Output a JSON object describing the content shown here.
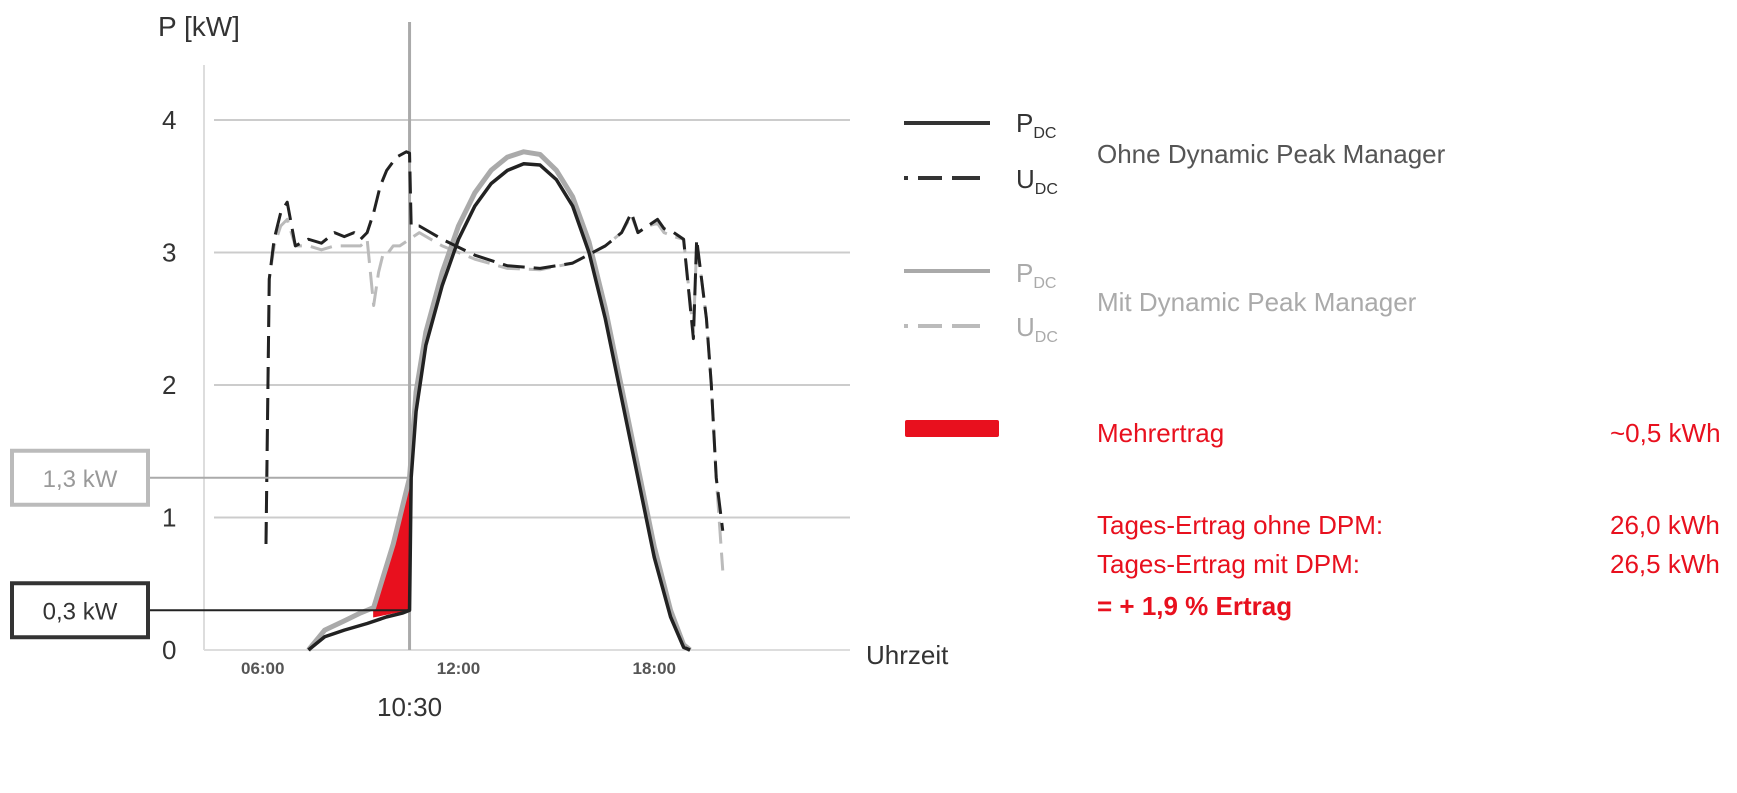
{
  "chart_data": {
    "type": "line",
    "ylabel": "P [kW]",
    "xlabel": "Uhrzeit",
    "ylim": [
      0,
      4.4
    ],
    "xlim": [
      4.2,
      24.0
    ],
    "y_ticks": [
      "0",
      "1",
      "2",
      "3",
      "4"
    ],
    "x_ticks": [
      {
        "label": "06:00",
        "value": 6.0
      },
      {
        "label": "12:00",
        "value": 12.0
      },
      {
        "label": "18:00",
        "value": 18.0
      }
    ],
    "marker": {
      "label": "10:30",
      "value": 10.5
    },
    "grid": true,
    "callouts": [
      {
        "label": "1,3 kW",
        "value": 1.3,
        "style": "grey"
      },
      {
        "label": "0,3 kW",
        "value": 0.3,
        "style": "dark"
      }
    ],
    "series": [
      {
        "legend": "P",
        "subscript": "DC",
        "group": "ohne",
        "style": "solid",
        "color": "#222222",
        "x": [
          7.4,
          7.9,
          8.5,
          9.2,
          9.8,
          10.3,
          10.5,
          10.55,
          10.7,
          11.0,
          11.5,
          12.0,
          12.5,
          13.0,
          13.5,
          14.0,
          14.5,
          15.0,
          15.5,
          16.0,
          16.5,
          17.0,
          17.5,
          18.0,
          18.5,
          18.9,
          19.1
        ],
        "y": [
          0.0,
          0.1,
          0.15,
          0.2,
          0.25,
          0.28,
          0.3,
          1.3,
          1.8,
          2.3,
          2.75,
          3.1,
          3.35,
          3.52,
          3.62,
          3.67,
          3.66,
          3.55,
          3.35,
          3.0,
          2.5,
          1.9,
          1.3,
          0.7,
          0.25,
          0.02,
          0.0
        ]
      },
      {
        "legend": "U",
        "subscript": "DC",
        "group": "ohne",
        "style": "dashed",
        "color": "#222222",
        "x": [
          6.1,
          6.2,
          6.35,
          6.55,
          6.75,
          7.0,
          7.4,
          7.8,
          8.2,
          8.5,
          8.8,
          9.0,
          9.2,
          9.4,
          9.6,
          9.8,
          10.1,
          10.4,
          10.5,
          10.55,
          10.8,
          11.5,
          12.5,
          13.5,
          14.5,
          15.5,
          16.5,
          17.0,
          17.3,
          17.5,
          17.8,
          18.1,
          18.3,
          18.6,
          18.9,
          19.2,
          19.3,
          19.45,
          19.6,
          19.75,
          19.9,
          20.1
        ],
        "y": [
          0.8,
          2.8,
          3.1,
          3.3,
          3.38,
          3.05,
          3.1,
          3.07,
          3.15,
          3.12,
          3.15,
          3.1,
          3.15,
          3.3,
          3.5,
          3.62,
          3.72,
          3.76,
          3.75,
          3.2,
          3.2,
          3.1,
          2.98,
          2.9,
          2.88,
          2.92,
          3.05,
          3.15,
          3.3,
          3.15,
          3.2,
          3.25,
          3.18,
          3.15,
          3.1,
          2.35,
          3.1,
          2.8,
          2.5,
          2.0,
          1.3,
          0.9
        ]
      },
      {
        "legend": "P",
        "subscript": "DC",
        "group": "mit",
        "style": "solid",
        "color": "#aaaaaa",
        "x": [
          7.4,
          7.9,
          8.5,
          9.0,
          9.4,
          10.0,
          10.5,
          10.7,
          11.0,
          11.5,
          12.0,
          12.5,
          13.0,
          13.5,
          14.0,
          14.5,
          15.0,
          15.5,
          16.0,
          16.5,
          17.0,
          17.5,
          18.0,
          18.5,
          18.9,
          19.1
        ],
        "y": [
          0.0,
          0.15,
          0.22,
          0.28,
          0.32,
          0.8,
          1.3,
          1.95,
          2.4,
          2.85,
          3.2,
          3.45,
          3.62,
          3.72,
          3.76,
          3.74,
          3.62,
          3.42,
          3.08,
          2.58,
          1.98,
          1.38,
          0.78,
          0.3,
          0.04,
          0.0
        ]
      },
      {
        "legend": "U",
        "subscript": "DC",
        "group": "mit",
        "style": "dashed",
        "color": "#bbbbbb",
        "x": [
          6.1,
          6.2,
          6.35,
          6.55,
          6.75,
          7.0,
          7.4,
          7.8,
          8.2,
          8.6,
          9.0,
          9.2,
          9.4,
          9.55,
          9.7,
          9.85,
          10.0,
          10.2,
          10.5,
          10.8,
          11.5,
          12.5,
          13.5,
          14.5,
          15.5,
          16.5,
          17.0,
          17.3,
          17.5,
          17.8,
          18.1,
          18.3,
          18.6,
          18.9,
          19.2,
          19.3,
          19.45,
          19.6,
          19.75,
          19.9,
          20.1
        ],
        "y": [
          0.8,
          2.8,
          3.05,
          3.2,
          3.25,
          3.05,
          3.05,
          3.02,
          3.05,
          3.05,
          3.05,
          3.1,
          2.6,
          2.85,
          3.0,
          3.0,
          3.05,
          3.05,
          3.1,
          3.15,
          3.05,
          2.95,
          2.88,
          2.87,
          2.92,
          3.05,
          3.15,
          3.28,
          3.15,
          3.2,
          3.22,
          3.15,
          3.12,
          3.1,
          2.4,
          3.05,
          2.8,
          2.5,
          2.0,
          1.3,
          0.6
        ]
      }
    ],
    "mehrertrag_area": {
      "x": [
        9.4,
        10.0,
        10.5
      ],
      "y_upper": [
        0.32,
        0.8,
        1.3
      ],
      "y_lower": [
        0.25,
        0.28,
        0.3
      ],
      "color": "#e8101e"
    }
  },
  "legend": {
    "ohne_label": "Ohne Dynamic Peak Manager",
    "mit_label": "Mit Dynamic Peak Manager",
    "p_dc_main": "P",
    "u_dc_main": "U",
    "dc_sub": "DC"
  },
  "info": {
    "mehrertrag_label": "Mehrertrag",
    "mehrertrag_value": "~0,5 kWh",
    "tages_ohne_label": "Tages-Ertrag ohne DPM:",
    "tages_ohne_value": "26,0 kWh",
    "tages_mit_label": "Tages-Ertrag mit DPM:",
    "tages_mit_value": "26,5 kWh",
    "result": "= + 1,9 % Ertrag"
  },
  "colors": {
    "red": "#e8101e",
    "dark": "#222222",
    "grey": "#aaaaaa",
    "grid": "#cccccc"
  }
}
